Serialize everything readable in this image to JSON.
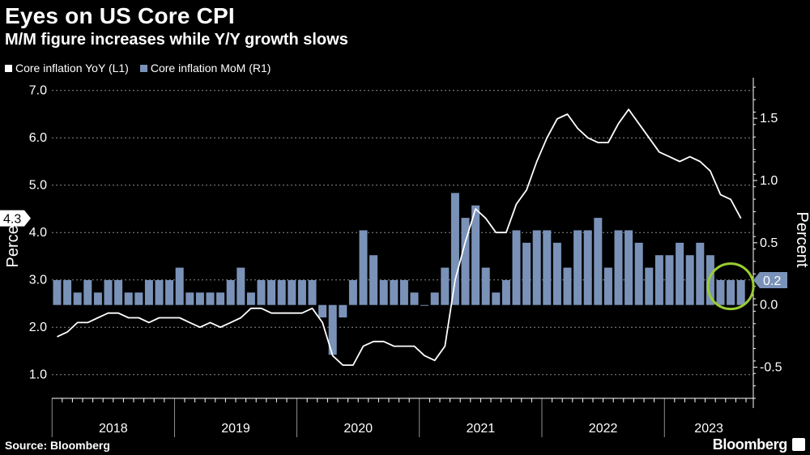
{
  "title": "Eyes on US Core CPI",
  "subtitle": "M/M figure increases while Y/Y growth slows",
  "legend": [
    {
      "label": "Core inflation YoY (L1)",
      "color": "#ffffff"
    },
    {
      "label": "Core inflation MoM (R1)",
      "color": "#7a92b8"
    }
  ],
  "source": "Source: Bloomberg",
  "brand": "Bloomberg",
  "colors": {
    "background": "#000000",
    "line": "#ffffff",
    "bar": "#7a92b8",
    "highlight": "#9acd32",
    "grid": "#ffffff"
  },
  "chart_data": {
    "type": "bar+line",
    "x_labels": [
      "2018",
      "2019",
      "2020",
      "2021",
      "2022",
      "2023"
    ],
    "left_axis": {
      "label": "Percent",
      "ticks": [
        "1.0",
        "2.0",
        "3.0",
        "4.0",
        "5.0",
        "6.0",
        "7.0"
      ],
      "range": [
        0.5,
        7.2
      ]
    },
    "right_axis": {
      "label": "Percent",
      "ticks": [
        "-0.5",
        "0.0",
        "0.5",
        "1.0",
        "1.5"
      ],
      "range": [
        -0.75,
        1.8
      ]
    },
    "series": [
      {
        "name": "Core inflation YoY (L1)",
        "axis": "left",
        "type": "line",
        "start": "2018-01",
        "values": [
          1.8,
          1.9,
          2.1,
          2.1,
          2.2,
          2.3,
          2.3,
          2.2,
          2.2,
          2.1,
          2.2,
          2.2,
          2.2,
          2.1,
          2.0,
          2.1,
          2.0,
          2.1,
          2.2,
          2.4,
          2.4,
          2.3,
          2.3,
          2.3,
          2.3,
          2.4,
          2.1,
          1.4,
          1.2,
          1.2,
          1.6,
          1.7,
          1.7,
          1.6,
          1.6,
          1.6,
          1.4,
          1.3,
          1.6,
          3.0,
          3.8,
          4.5,
          4.3,
          4.0,
          4.0,
          4.6,
          4.9,
          5.5,
          6.0,
          6.4,
          6.5,
          6.2,
          6.0,
          5.9,
          5.9,
          6.3,
          6.6,
          6.3,
          6.0,
          5.7,
          5.6,
          5.5,
          5.6,
          5.5,
          5.3,
          4.8,
          4.7,
          4.3
        ]
      },
      {
        "name": "Core inflation MoM (R1)",
        "axis": "right",
        "type": "bar",
        "start": "2018-01",
        "values": [
          0.2,
          0.2,
          0.1,
          0.2,
          0.1,
          0.2,
          0.2,
          0.1,
          0.1,
          0.2,
          0.2,
          0.2,
          0.3,
          0.1,
          0.1,
          0.1,
          0.1,
          0.2,
          0.3,
          0.1,
          0.2,
          0.2,
          0.2,
          0.2,
          0.2,
          0.2,
          -0.1,
          -0.4,
          -0.1,
          0.2,
          0.6,
          0.4,
          0.2,
          0.2,
          0.2,
          0.1,
          0.0,
          0.1,
          0.3,
          0.9,
          0.7,
          0.8,
          0.3,
          0.1,
          0.2,
          0.6,
          0.5,
          0.6,
          0.6,
          0.5,
          0.3,
          0.6,
          0.6,
          0.7,
          0.3,
          0.6,
          0.6,
          0.5,
          0.3,
          0.4,
          0.4,
          0.5,
          0.4,
          0.5,
          0.4,
          0.2,
          0.2,
          0.2
        ]
      }
    ],
    "annotations": [
      {
        "axis": "left",
        "value": 4.3,
        "text": "4.3"
      },
      {
        "axis": "right",
        "value": 0.2,
        "text": "0.2"
      }
    ],
    "highlight": {
      "description": "circle around latest three MoM bars",
      "from_index": 65,
      "to_index": 67
    }
  }
}
